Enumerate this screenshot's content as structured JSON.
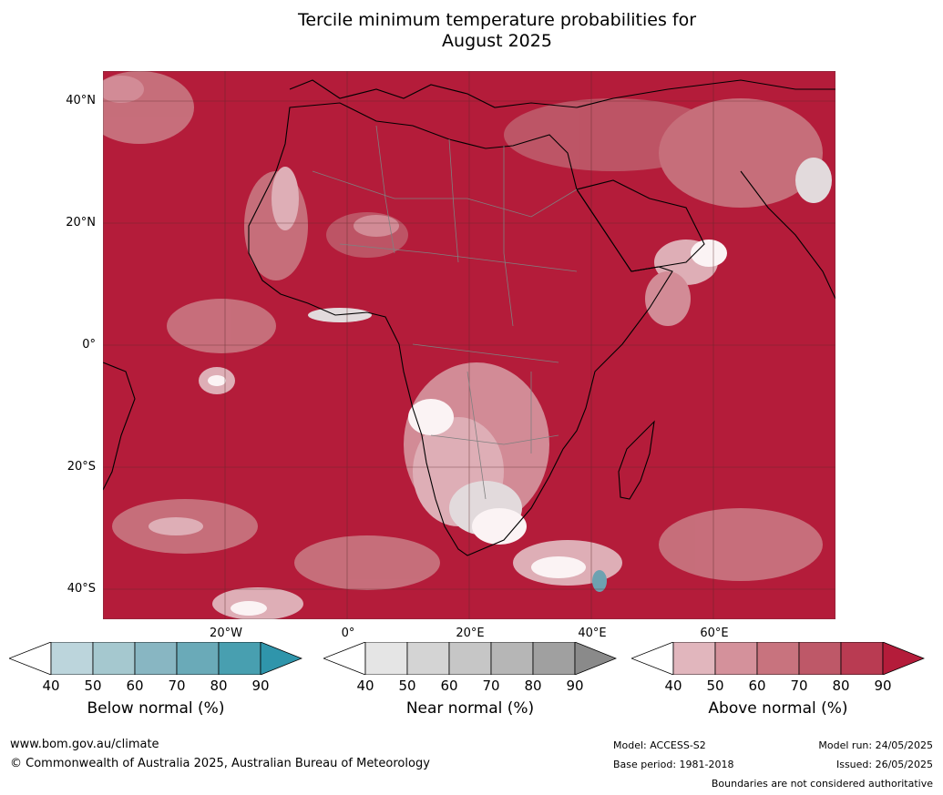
{
  "title": {
    "line1": "Tercile minimum temperature probabilities for",
    "line2": "August 2025"
  },
  "map": {
    "lat_labels": [
      "40°N",
      "20°N",
      "0°",
      "20°S",
      "40°S"
    ],
    "lon_labels": [
      "20°W",
      "0°",
      "20°E",
      "40°E",
      "60°E"
    ],
    "extent": {
      "lon": [
        -30,
        90
      ],
      "lat": [
        -45,
        45
      ]
    },
    "colors": {
      "ocean_dominant": "#b41c3a",
      "land_outline": "#000000",
      "border": "#808080",
      "gridline": "#5a2a2a"
    }
  },
  "colorbars": [
    {
      "name": "Below normal (%)",
      "ticks": [
        "40",
        "50",
        "60",
        "70",
        "80",
        "90"
      ],
      "colors": [
        "#ffffff",
        "#bcd5dc",
        "#a5c8cf",
        "#88b6c2",
        "#6aaab8",
        "#489fb0",
        "#2f95ab"
      ]
    },
    {
      "name": "Near normal (%)",
      "ticks": [
        "40",
        "50",
        "60",
        "70",
        "80",
        "90"
      ],
      "colors": [
        "#ffffff",
        "#e5e5e5",
        "#d4d4d4",
        "#c6c6c6",
        "#b6b6b6",
        "#a0a0a0",
        "#8a8a8a"
      ]
    },
    {
      "name": "Above normal (%)",
      "ticks": [
        "40",
        "50",
        "60",
        "70",
        "80",
        "90"
      ],
      "colors": [
        "#ffffff",
        "#e1b6bd",
        "#d4919b",
        "#c8737e",
        "#be5868",
        "#b93b52",
        "#b41c3a"
      ]
    }
  ],
  "footer": {
    "website": "www.bom.gov.au/climate",
    "copyright": "© Commonwealth of Australia 2025, Australian Bureau of Meteorology",
    "model": "Model: ACCESS-S2",
    "base_period": "Base period: 1981-2018",
    "model_run": "Model run: 24/05/2025",
    "issued": "Issued: 26/05/2025",
    "disclaimer": "Boundaries are not considered authoritative"
  }
}
